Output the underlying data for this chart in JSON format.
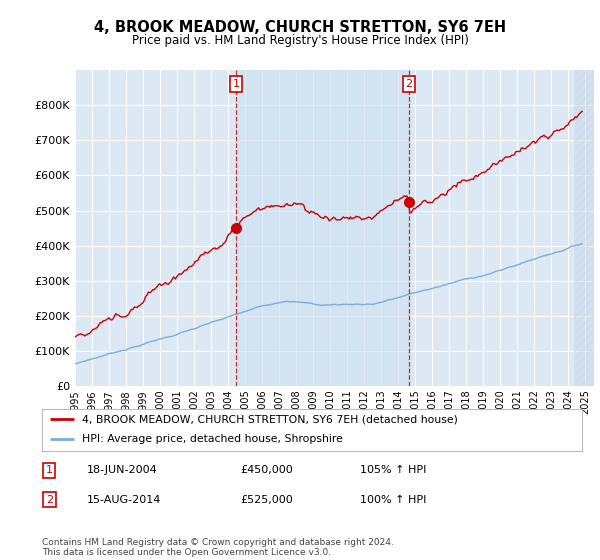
{
  "title": "4, BROOK MEADOW, CHURCH STRETTON, SY6 7EH",
  "subtitle": "Price paid vs. HM Land Registry's House Price Index (HPI)",
  "background_color": "#ffffff",
  "plot_bg_color": "#dce9f5",
  "plot_bg_between": "#ccdff0",
  "grid_color": "#ffffff",
  "hpi_color": "#7bafd4",
  "price_color": "#cc0000",
  "sale1_date": 2004.46,
  "sale1_price": 450000,
  "sale2_date": 2014.62,
  "sale2_price": 525000,
  "legend_line1": "4, BROOK MEADOW, CHURCH STRETTON, SY6 7EH (detached house)",
  "legend_line2": "HPI: Average price, detached house, Shropshire",
  "table_row1": [
    "1",
    "18-JUN-2004",
    "£450,000",
    "105% ↑ HPI"
  ],
  "table_row2": [
    "2",
    "15-AUG-2014",
    "£525,000",
    "100% ↑ HPI"
  ],
  "footnote": "Contains HM Land Registry data © Crown copyright and database right 2024.\nThis data is licensed under the Open Government Licence v3.0.",
  "xmin": 1995,
  "xmax": 2025.5,
  "ymin": 0,
  "ymax": 900000
}
